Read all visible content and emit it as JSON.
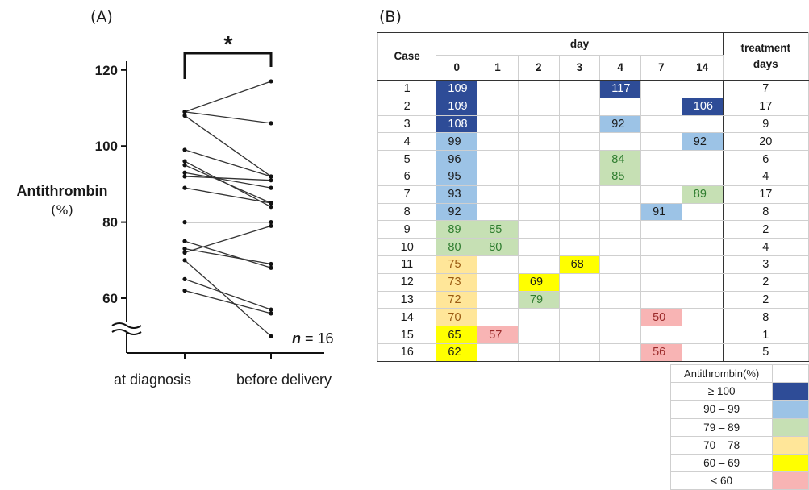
{
  "panel_a_label": "(A)",
  "panel_b_label": "(B)",
  "chart_data": [
    {
      "type": "line",
      "title": "",
      "ylabel_line1": "Antithrombin",
      "ylabel_line2": "(%)",
      "yticks": [
        60,
        80,
        100,
        120
      ],
      "ylim": [
        50,
        120
      ],
      "y_axis_break": true,
      "categories": [
        "at diagnosis",
        "before delivery"
      ],
      "significance_marker": "*",
      "annotation_n": "n",
      "annotation_eq": " = 16",
      "series": [
        {
          "values": [
            109,
            117
          ]
        },
        {
          "values": [
            109,
            106
          ]
        },
        {
          "values": [
            108,
            92
          ]
        },
        {
          "values": [
            99,
            92
          ]
        },
        {
          "values": [
            96,
            84
          ]
        },
        {
          "values": [
            95,
            85
          ]
        },
        {
          "values": [
            93,
            89
          ]
        },
        {
          "values": [
            92,
            91
          ]
        },
        {
          "values": [
            89,
            85
          ]
        },
        {
          "values": [
            80,
            80
          ]
        },
        {
          "values": [
            75,
            68
          ]
        },
        {
          "values": [
            73,
            69
          ]
        },
        {
          "values": [
            72,
            79
          ]
        },
        {
          "values": [
            70,
            50
          ]
        },
        {
          "values": [
            65,
            57
          ]
        },
        {
          "values": [
            62,
            56
          ]
        }
      ],
      "grid": false
    },
    {
      "type": "table",
      "header_case": "Case",
      "header_day": "day",
      "header_treatment_line1": "treatment",
      "header_treatment_line2": "days",
      "days": [
        "0",
        "1",
        "2",
        "3",
        "4",
        "7",
        "14"
      ],
      "rows": [
        {
          "case": "1",
          "values": [
            109,
            null,
            null,
            null,
            117,
            null,
            null
          ],
          "treatment_days": 7
        },
        {
          "case": "2",
          "values": [
            109,
            null,
            null,
            null,
            null,
            null,
            106
          ],
          "treatment_days": 17
        },
        {
          "case": "3",
          "values": [
            108,
            null,
            null,
            null,
            92,
            null,
            null
          ],
          "treatment_days": 9
        },
        {
          "case": "4",
          "values": [
            99,
            null,
            null,
            null,
            null,
            null,
            92
          ],
          "treatment_days": 20
        },
        {
          "case": "5",
          "values": [
            96,
            null,
            null,
            null,
            84,
            null,
            null
          ],
          "treatment_days": 6
        },
        {
          "case": "6",
          "values": [
            95,
            null,
            null,
            null,
            85,
            null,
            null
          ],
          "treatment_days": 4
        },
        {
          "case": "7",
          "values": [
            93,
            null,
            null,
            null,
            null,
            null,
            89
          ],
          "treatment_days": 17
        },
        {
          "case": "8",
          "values": [
            92,
            null,
            null,
            null,
            null,
            91,
            null
          ],
          "treatment_days": 8
        },
        {
          "case": "9",
          "values": [
            89,
            85,
            null,
            null,
            null,
            null,
            null
          ],
          "treatment_days": 2
        },
        {
          "case": "10",
          "values": [
            80,
            80,
            null,
            null,
            null,
            null,
            null
          ],
          "treatment_days": 4
        },
        {
          "case": "11",
          "values": [
            75,
            null,
            null,
            68,
            null,
            null,
            null
          ],
          "treatment_days": 3
        },
        {
          "case": "12",
          "values": [
            73,
            null,
            69,
            null,
            null,
            null,
            null
          ],
          "treatment_days": 2
        },
        {
          "case": "13",
          "values": [
            72,
            null,
            79,
            null,
            null,
            null,
            null
          ],
          "treatment_days": 2
        },
        {
          "case": "14",
          "values": [
            70,
            null,
            null,
            null,
            null,
            50,
            null
          ],
          "treatment_days": 8
        },
        {
          "case": "15",
          "values": [
            65,
            57,
            null,
            null,
            null,
            null,
            null
          ],
          "treatment_days": 1
        },
        {
          "case": "16",
          "values": [
            62,
            null,
            null,
            null,
            null,
            56,
            null
          ],
          "treatment_days": 5
        }
      ],
      "legend_title": "Antithrombin(%)",
      "legend": [
        {
          "label": "≥ 100",
          "min": 100,
          "max": 999,
          "fill": "#2E4C97",
          "text": "#ffffff"
        },
        {
          "label": "90 – 99",
          "min": 90,
          "max": 99,
          "fill": "#9CC3E6",
          "text": "#1a1a1a"
        },
        {
          "label": "79 – 89",
          "min": 79,
          "max": 89,
          "fill": "#C6E0B4",
          "text": "#2f7d2f"
        },
        {
          "label": "70 – 78",
          "min": 70,
          "max": 78,
          "fill": "#FFE699",
          "text": "#9a5a12"
        },
        {
          "label": "60 – 69",
          "min": 60,
          "max": 69,
          "fill": "#FFFF00",
          "text": "#1a1a1a"
        },
        {
          "label": "< 60",
          "min": 0,
          "max": 59,
          "fill": "#F8B4B4",
          "text": "#9b2a2a"
        }
      ]
    }
  ]
}
